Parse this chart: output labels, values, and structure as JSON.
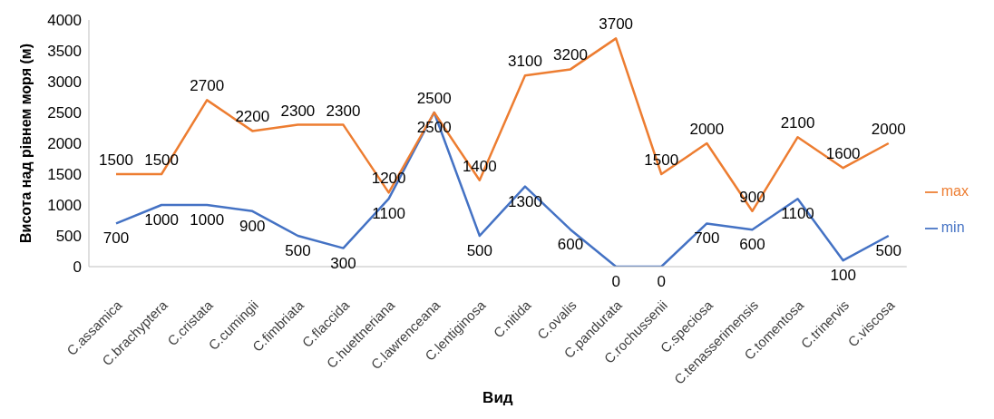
{
  "chart_data": {
    "type": "line",
    "xlabel": "Вид",
    "ylabel": "Висота над рівнем моря (м)",
    "categories": [
      "C.assamica",
      "C.brachyptera",
      "C.cristata",
      "C.cumingii",
      "C.fimbriata",
      "C.flaccida",
      "C.huettneriana",
      "C.lawrenceana",
      "C.lentiginosa",
      "C.nitida",
      "C.ovalis",
      "C.pandurata",
      "C.rochussenii",
      "C.speciosa",
      "C.tenasserimensis",
      "C.tomentosa",
      "C.trinervis",
      "C.viscosa"
    ],
    "series": [
      {
        "name": "min",
        "color": "#4472c4",
        "values": [
          700,
          1000,
          1000,
          900,
          500,
          300,
          1100,
          2500,
          500,
          1300,
          600,
          0,
          0,
          700,
          600,
          1100,
          100,
          500
        ]
      },
      {
        "name": "max",
        "color": "#ed7d31",
        "values": [
          1500,
          1500,
          2700,
          2200,
          2300,
          2300,
          1200,
          2500,
          1400,
          3100,
          3200,
          3700,
          1500,
          2000,
          900,
          2100,
          1600,
          2000
        ]
      }
    ],
    "ylim": [
      0,
      4000
    ],
    "yticks": [
      0,
      500,
      1000,
      1500,
      2000,
      2500,
      3000,
      3500,
      4000
    ],
    "grid": false,
    "legend": "right",
    "marker": "none",
    "line_style": "solid",
    "data_labels": true
  }
}
